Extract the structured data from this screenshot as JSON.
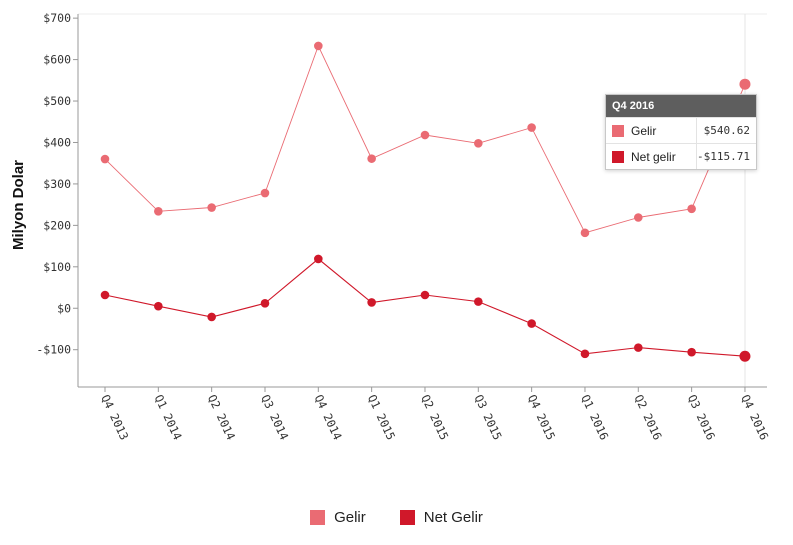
{
  "colors": {
    "gelir": "#ea6b73",
    "net": "#d0182a"
  },
  "chart_data": {
    "type": "line",
    "ylabel": "Milyon Dolar",
    "xlabel": "",
    "ylim": [
      -190,
      710
    ],
    "yticks": [
      {
        "value": 700,
        "label": "$700"
      },
      {
        "value": 600,
        "label": "$600"
      },
      {
        "value": 500,
        "label": "$500"
      },
      {
        "value": 400,
        "label": "$400"
      },
      {
        "value": 300,
        "label": "$300"
      },
      {
        "value": 200,
        "label": "$200"
      },
      {
        "value": 100,
        "label": "$100"
      },
      {
        "value": 0,
        "label": "$0"
      },
      {
        "value": -100,
        "label": "-$100"
      }
    ],
    "categories": [
      "Q4 2013",
      "Q1 2014",
      "Q2 2014",
      "Q3 2014",
      "Q4 2014",
      "Q1 2015",
      "Q2 2015",
      "Q3 2015",
      "Q4 2015",
      "Q1 2016",
      "Q2 2016",
      "Q3 2016",
      "Q4 2016"
    ],
    "series": [
      {
        "name": "Gelir",
        "values": [
          360,
          234,
          243,
          278,
          633,
          361,
          418,
          398,
          436,
          182,
          219,
          240,
          540.62
        ]
      },
      {
        "name": "Net Gelir",
        "values": [
          32,
          5,
          -21,
          12,
          119,
          14,
          32,
          16,
          -37,
          -110,
          -95,
          -106,
          -115.71
        ]
      }
    ],
    "legend": [
      "Gelir",
      "Net Gelir"
    ],
    "legend_position": "bottom",
    "grid": false
  },
  "tooltip": {
    "title": "Q4 2016",
    "rows": [
      {
        "name": "Gelir",
        "value": "$540.62"
      },
      {
        "name": "Net gelir",
        "value": "-$115.71"
      }
    ]
  }
}
